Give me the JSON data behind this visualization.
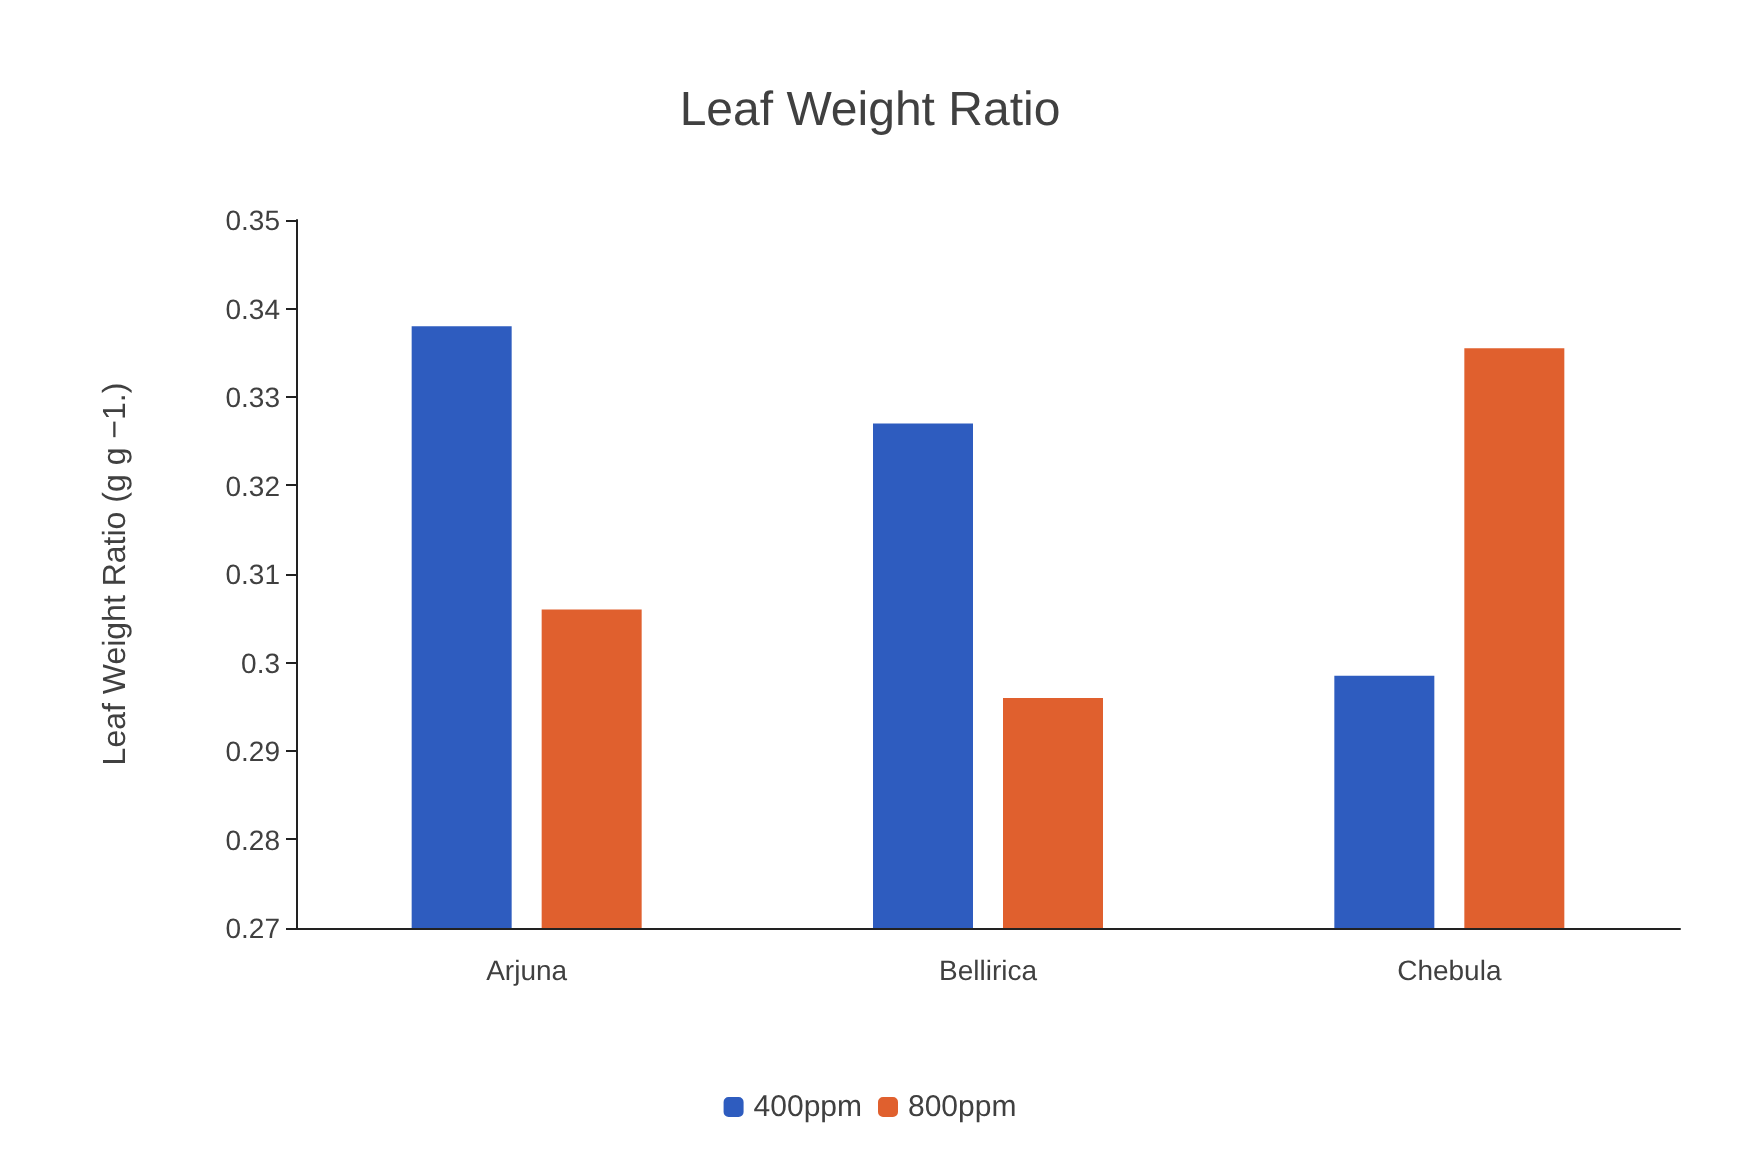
{
  "chart_data": {
    "type": "bar",
    "title": "Leaf Weight Ratio",
    "ylabel": "Leaf Weight Ratio (g g −1.)",
    "categories": [
      "Arjuna",
      "Bellirica",
      "Chebula"
    ],
    "series": [
      {
        "name": "400ppm",
        "color": "#2e5cbf",
        "values": [
          0.338,
          0.327,
          0.2985
        ]
      },
      {
        "name": "800ppm",
        "color": "#e0602e",
        "values": [
          0.306,
          0.296,
          0.3355
        ]
      }
    ],
    "ylim": [
      0.27,
      0.35
    ],
    "yticks": [
      0.27,
      0.28,
      0.29,
      0.3,
      0.31,
      0.32,
      0.33,
      0.34,
      0.35
    ],
    "grid": false,
    "legend": "bottom"
  }
}
